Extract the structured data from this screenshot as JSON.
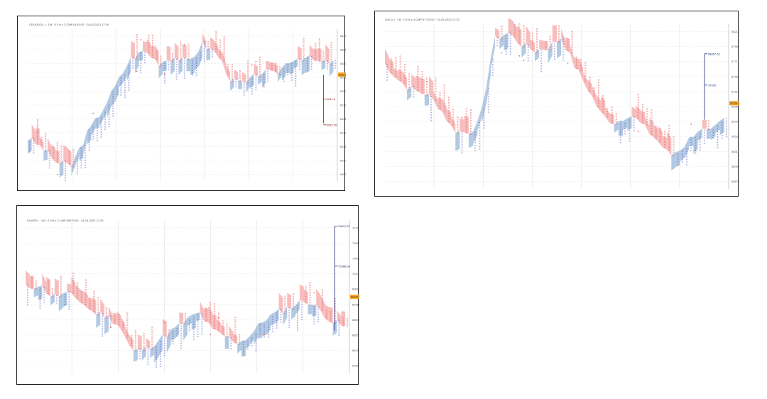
{
  "chart_data": [
    {
      "type": "point-and-figure",
      "header": "CRUDEOIL-I · 1M · 0.1% x 3 CMP 6153.00 · 24-03-2023 17:39",
      "price_range": [
        5950,
        6430
      ],
      "yticks": [
        "6430",
        "6385",
        "6340",
        "6297",
        "6253",
        "6210",
        "6166",
        "6122",
        "6078",
        "6034",
        "5990"
      ],
      "cmp_label": "6153.00",
      "annotations": [
        "6041.6",
        "5993.05"
      ],
      "colors": {
        "x": "#5a5fc8",
        "o": "#e86a6a",
        "cloud_up": "#9ab8d8",
        "cloud_down": "#f4a8a8",
        "marker": "#8b1a1a",
        "cmp_tag": "#f5a623"
      }
    },
    {
      "type": "point-and-figure",
      "header": "GOLD-I · 1M · 0.1% x 3 CMP 57720.00 · 24-03-2023 17:22",
      "price_range": [
        55900,
        58400
      ],
      "yticks": [
        "58216",
        "57951",
        "57711",
        "57456",
        "57213",
        "56981",
        "56760",
        "56536",
        "56311",
        "56093",
        "55879"
      ],
      "cmp_label": "57720.00",
      "annotations": [
        "58067.63",
        "57926"
      ],
      "colors": {
        "x": "#5a5fc8",
        "o": "#e86a6a",
        "cloud_up": "#9ab8d8",
        "cloud_down": "#f4a8a8",
        "marker": "#1f2a7a",
        "cmp_tag": "#f5a623"
      }
    },
    {
      "type": "point-and-figure",
      "header": "SILVER-I · 1M · 0.2% x 3 CMP 69375.00 · 24-03-2023 17:29",
      "price_range": [
        67600,
        71500
      ],
      "yticks": [
        "71323",
        "70914",
        "70498",
        "70104",
        "69680",
        "69311",
        "68906",
        "68567",
        "68183",
        "67824"
      ],
      "cmp_label": "69375.00",
      "annotations": [
        "70871.22",
        "70088.98"
      ],
      "colors": {
        "x": "#5a5fc8",
        "o": "#e86a6a",
        "cloud_up": "#9ab8d8",
        "cloud_down": "#f4a8a8",
        "marker": "#1f2a7a",
        "cmp_tag": "#f5a623"
      }
    }
  ]
}
